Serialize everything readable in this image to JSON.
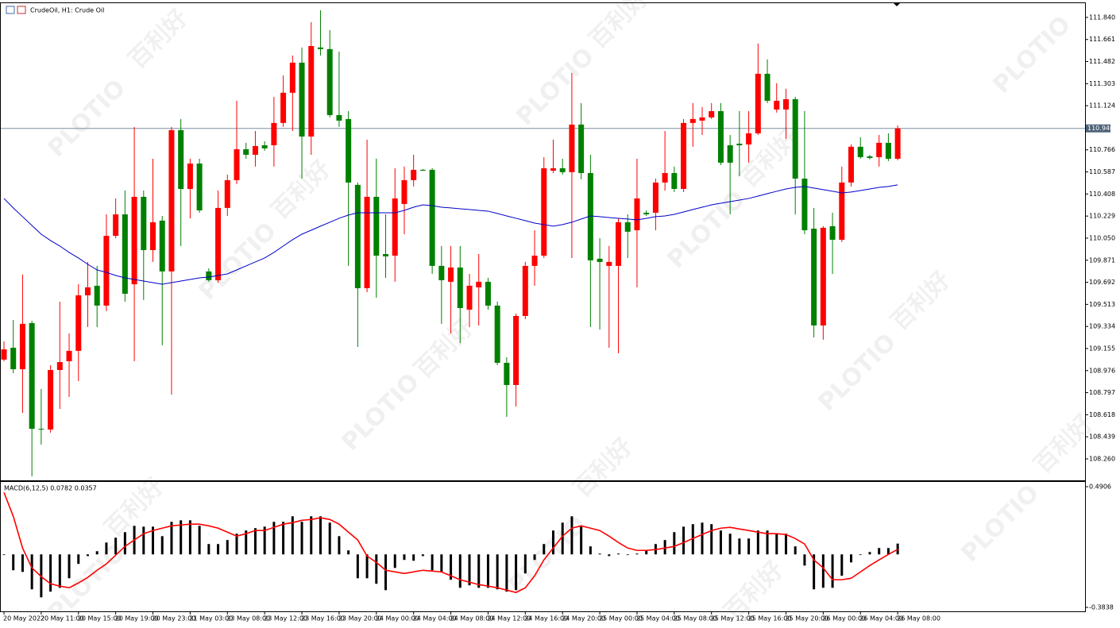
{
  "chart_data": [
    {
      "type": "candlestick",
      "title": "CrudeOil, H1: Crude Oil",
      "watermark": [
        "百利好",
        "PLOTIO"
      ],
      "categories": [
        "20 May 2022",
        null,
        null,
        null,
        "20 May 11:00",
        null,
        null,
        null,
        "20 May 15:00",
        null,
        null,
        null,
        "20 May 19:00",
        null,
        null,
        null,
        "20 May 23:00",
        null,
        null,
        null,
        "21 May 03:00",
        null,
        null,
        null,
        "23 May 08:00",
        null,
        null,
        null,
        "23 May 12:00",
        null,
        null,
        null,
        "23 May 16:00",
        null,
        null,
        null,
        "23 May 20:00",
        null,
        null,
        null,
        "24 May 00:00",
        null,
        null,
        null,
        "24 May 04:00",
        null,
        null,
        null,
        "24 May 08:00",
        null,
        null,
        null,
        "24 May 12:00",
        null,
        null,
        null,
        "24 May 16:00",
        null,
        null,
        null,
        "24 May 20:00",
        null,
        null,
        null,
        "25 May 00:00",
        null,
        null,
        null,
        "25 May 04:00",
        null,
        null,
        null,
        "25 May 08:00",
        null,
        null,
        null,
        "25 May 12:00",
        null,
        null,
        null,
        "25 May 16:00",
        null,
        null,
        null,
        "25 May 20:00",
        null,
        null,
        null,
        "26 May 00:00",
        null,
        null,
        null,
        "26 May 04:00",
        null,
        null,
        null,
        "26 May 08:00"
      ],
      "open": [
        109.065,
        109.161,
        108.987,
        109.361,
        108.504,
        108.498,
        108.981,
        109.052,
        109.136,
        109.586,
        109.664,
        109.503,
        110.069,
        110.243,
        109.676,
        110.385,
        109.953,
        110.192,
        109.78,
        110.926,
        110.449,
        110.655,
        109.78,
        109.709,
        110.295,
        110.52,
        110.771,
        110.726,
        110.803,
        110.803,
        110.984,
        111.229,
        111.473,
        110.874,
        111.596,
        111.583,
        111.048,
        111.016,
        110.482,
        109.644,
        110.385,
        109.921,
        109.908,
        110.327,
        110.52,
        110.604,
        110.604,
        109.825,
        109.696,
        109.812,
        109.47,
        109.651,
        109.696,
        109.503,
        109.039,
        108.859,
        109.419,
        109.825,
        109.908,
        110.597,
        110.617,
        110.585,
        110.971,
        110.578,
        109.883,
        109.825,
        109.825,
        110.179,
        110.114,
        110.256,
        110.256,
        110.501,
        110.578,
        110.449,
        110.984,
        111.003,
        111.029,
        111.08,
        110.803,
        110.816,
        110.81,
        110.9,
        111.383,
        111.093,
        111.093,
        111.177,
        110.533,
        110.127,
        109.342,
        110.147,
        110.037,
        110.501,
        110.791,
        110.713,
        110.707,
        110.823,
        110.694
      ],
      "high": [
        109.213,
        109.387,
        109.754,
        109.38,
        108.827,
        109.02,
        109.535,
        109.277,
        109.676,
        109.857,
        109.825,
        110.243,
        110.372,
        110.436,
        110.952,
        110.436,
        110.694,
        110.23,
        110.952,
        111.016,
        110.694,
        110.694,
        109.805,
        110.436,
        110.565,
        111.164,
        110.823,
        110.919,
        110.836,
        111.196,
        111.37,
        111.531,
        111.596,
        111.802,
        111.898,
        111.737,
        111.563,
        111.08,
        110.501,
        110.849,
        110.694,
        110.243,
        110.617,
        110.63,
        110.726,
        110.61,
        110.617,
        109.986,
        109.986,
        109.986,
        109.76,
        109.921,
        109.728,
        109.535,
        109.084,
        109.438,
        109.857,
        110.114,
        110.707,
        110.849,
        110.694,
        111.39,
        111.145,
        110.726,
        110.05,
        109.986,
        110.211,
        110.243,
        110.694,
        110.275,
        110.533,
        110.919,
        110.63,
        111.016,
        111.145,
        111.113,
        111.145,
        111.145,
        110.887,
        111.08,
        111.08,
        111.628,
        111.499,
        111.306,
        111.261,
        111.196,
        111.08,
        110.295,
        110.147,
        110.256,
        110.63,
        110.81,
        110.868,
        110.726,
        110.887,
        110.9,
        110.964
      ],
      "low": [
        109.052,
        108.955,
        108.633,
        108.118,
        108.376,
        108.472,
        108.665,
        108.762,
        108.891,
        109.329,
        109.329,
        109.458,
        110.05,
        109.535,
        109.052,
        109.548,
        109.857,
        109.181,
        108.781,
        109.986,
        110.211,
        110.256,
        109.696,
        109.689,
        110.23,
        110.488,
        110.694,
        110.63,
        110.759,
        110.63,
        110.952,
        110.919,
        110.533,
        110.726,
        111.531,
        111.029,
        110.952,
        109.825,
        109.168,
        109.612,
        109.567,
        109.728,
        109.696,
        110.082,
        110.469,
        110.597,
        109.76,
        109.355,
        109.277,
        109.2,
        109.329,
        109.342,
        109.47,
        109.02,
        108.601,
        108.685,
        109.393,
        109.664,
        109.889,
        110.578,
        110.565,
        109.889,
        110.527,
        109.329,
        109.309,
        109.161,
        109.116,
        109.889,
        109.651,
        110.23,
        110.114,
        110.436,
        110.424,
        110.424,
        110.791,
        110.887,
        111.016,
        110.642,
        110.243,
        110.552,
        110.662,
        110.887,
        111.145,
        111.068,
        110.855,
        110.243,
        110.082,
        109.245,
        109.226,
        109.76,
        110.018,
        110.469,
        110.694,
        110.688,
        110.63,
        110.675,
        110.681
      ],
      "close": [
        109.148,
        108.987,
        109.355,
        108.504,
        108.498,
        108.981,
        109.045,
        109.136,
        109.586,
        109.651,
        109.503,
        110.069,
        110.243,
        109.599,
        110.385,
        109.953,
        110.179,
        109.78,
        110.926,
        110.449,
        110.655,
        110.275,
        109.709,
        110.295,
        110.52,
        110.771,
        110.726,
        110.797,
        110.778,
        110.984,
        111.229,
        111.473,
        110.874,
        111.608,
        111.583,
        111.048,
        111.003,
        110.501,
        109.644,
        110.385,
        109.908,
        109.902,
        110.372,
        110.52,
        110.604,
        110.597,
        109.825,
        109.709,
        109.812,
        109.483,
        109.664,
        109.696,
        109.503,
        109.039,
        108.859,
        109.419,
        109.825,
        109.908,
        110.617,
        110.617,
        110.585,
        110.971,
        110.578,
        109.87,
        109.857,
        109.857,
        110.179,
        110.102,
        110.372,
        110.243,
        110.501,
        110.578,
        110.449,
        110.984,
        111.016,
        111.029,
        111.08,
        110.662,
        110.662,
        110.803,
        110.9,
        111.383,
        111.164,
        111.164,
        111.177,
        110.533,
        110.114,
        109.342,
        110.134,
        110.037,
        110.501,
        110.791,
        110.707,
        110.7,
        110.823,
        110.694,
        110.94
      ],
      "up_color": "#ff0000",
      "down_color": "#008000",
      "ma": {
        "color": "#0000c8",
        "values": [
          110.372,
          110.295,
          110.224,
          110.153,
          110.082,
          110.031,
          109.986,
          109.934,
          109.889,
          109.838,
          109.792,
          109.773,
          109.747,
          109.728,
          109.715,
          109.702,
          109.689,
          109.676,
          109.689,
          109.702,
          109.715,
          109.728,
          109.734,
          109.747,
          109.76,
          109.792,
          109.825,
          109.857,
          109.889,
          109.934,
          109.986,
          110.037,
          110.082,
          110.114,
          110.147,
          110.179,
          110.211,
          110.237,
          110.256,
          110.256,
          110.256,
          110.256,
          110.256,
          110.275,
          110.301,
          110.32,
          110.314,
          110.301,
          110.295,
          110.288,
          110.282,
          110.275,
          110.269,
          110.25,
          110.23,
          110.211,
          110.192,
          110.172,
          110.16,
          110.147,
          110.16,
          110.179,
          110.205,
          110.23,
          110.224,
          110.217,
          110.211,
          110.205,
          110.198,
          110.211,
          110.224,
          110.23,
          110.243,
          110.262,
          110.282,
          110.301,
          110.32,
          110.333,
          110.346,
          110.359,
          110.372,
          110.391,
          110.411,
          110.43,
          110.449,
          110.462,
          110.469,
          110.456,
          110.443,
          110.43,
          110.417,
          110.424,
          110.436,
          110.449,
          110.462,
          110.469,
          110.482
        ]
      },
      "current_price": {
        "value": 110.94,
        "label": "110.940"
      },
      "ylim": [
        108.086,
        111.949
      ],
      "yticks": [
        {
          "value": 111.84,
          "label": "111.840"
        },
        111.661,
        111.482,
        111.303,
        111.124,
        110.766,
        110.587,
        110.408,
        110.229,
        {
          "value": 110.05,
          "label": "110.050"
        },
        109.871,
        109.692,
        109.513,
        109.334,
        109.155,
        108.976,
        108.797,
        108.618,
        108.439,
        {
          "value": 108.26,
          "label": "108.260"
        }
      ]
    },
    {
      "type": "macd",
      "title": "MACD(6,12,5) 0.0782 0.0357",
      "color": "#000000",
      "values": [
        0,
        -0.115,
        -0.127,
        -0.253,
        -0.311,
        -0.27,
        -0.242,
        -0.173,
        -0.069,
        -0.012,
        0.023,
        0.086,
        0.121,
        0.161,
        0.207,
        0.201,
        0.201,
        0.132,
        0.236,
        0.247,
        0.247,
        0.207,
        0.075,
        0.075,
        0.104,
        0.15,
        0.173,
        0.19,
        0.201,
        0.236,
        0.236,
        0.276,
        0.236,
        0.276,
        0.276,
        0.23,
        0.132,
        0.029,
        -0.173,
        -0.173,
        -0.213,
        -0.259,
        -0.098,
        -0.04,
        -0.046,
        -0.012,
        -0.115,
        -0.127,
        -0.184,
        -0.242,
        -0.224,
        -0.242,
        -0.242,
        -0.253,
        -0.27,
        -0.259,
        -0.138,
        -0.04,
        0.075,
        0.173,
        0.23,
        0.276,
        0.207,
        0.058,
        0.006,
        -0.012,
        0.006,
        0,
        0.006,
        0.029,
        0.075,
        0.104,
        0.161,
        0.201,
        0.219,
        0.23,
        0.219,
        0.173,
        0.15,
        0.115,
        0.115,
        0.173,
        0.173,
        0.15,
        0.15,
        0.058,
        -0.081,
        -0.253,
        -0.242,
        -0.242,
        -0.155,
        -0.058,
        0,
        0.017,
        0.046,
        0.046,
        0.0782
      ],
      "signal": {
        "color": "#ff0000",
        "values": [
          0.449,
          0.276,
          0.046,
          -0.098,
          -0.161,
          -0.213,
          -0.23,
          -0.242,
          -0.207,
          -0.167,
          -0.115,
          -0.069,
          -0.006,
          0.058,
          0.104,
          0.15,
          0.173,
          0.19,
          0.207,
          0.213,
          0.219,
          0.219,
          0.207,
          0.19,
          0.161,
          0.132,
          0.15,
          0.173,
          0.173,
          0.196,
          0.219,
          0.23,
          0.247,
          0.253,
          0.265,
          0.253,
          0.219,
          0.161,
          0.104,
          -0.012,
          -0.058,
          -0.115,
          -0.127,
          -0.138,
          -0.127,
          -0.115,
          -0.121,
          -0.127,
          -0.155,
          -0.184,
          -0.201,
          -0.219,
          -0.23,
          -0.242,
          -0.259,
          -0.276,
          -0.242,
          -0.155,
          -0.04,
          0.046,
          0.132,
          0.19,
          0.207,
          0.19,
          0.173,
          0.132,
          0.086,
          0.046,
          0.029,
          0.029,
          0.035,
          0.046,
          0.058,
          0.086,
          0.115,
          0.144,
          0.173,
          0.19,
          0.196,
          0.184,
          0.173,
          0.161,
          0.15,
          0.15,
          0.144,
          0.115,
          0.075,
          -0.04,
          -0.098,
          -0.184,
          -0.184,
          -0.173,
          -0.127,
          -0.081,
          -0.04,
          0,
          0.0357
        ]
      },
      "ylim": [
        -0.4126,
        0.5251
      ],
      "yticks": [
        0.4906,
        -0.3838
      ]
    }
  ]
}
